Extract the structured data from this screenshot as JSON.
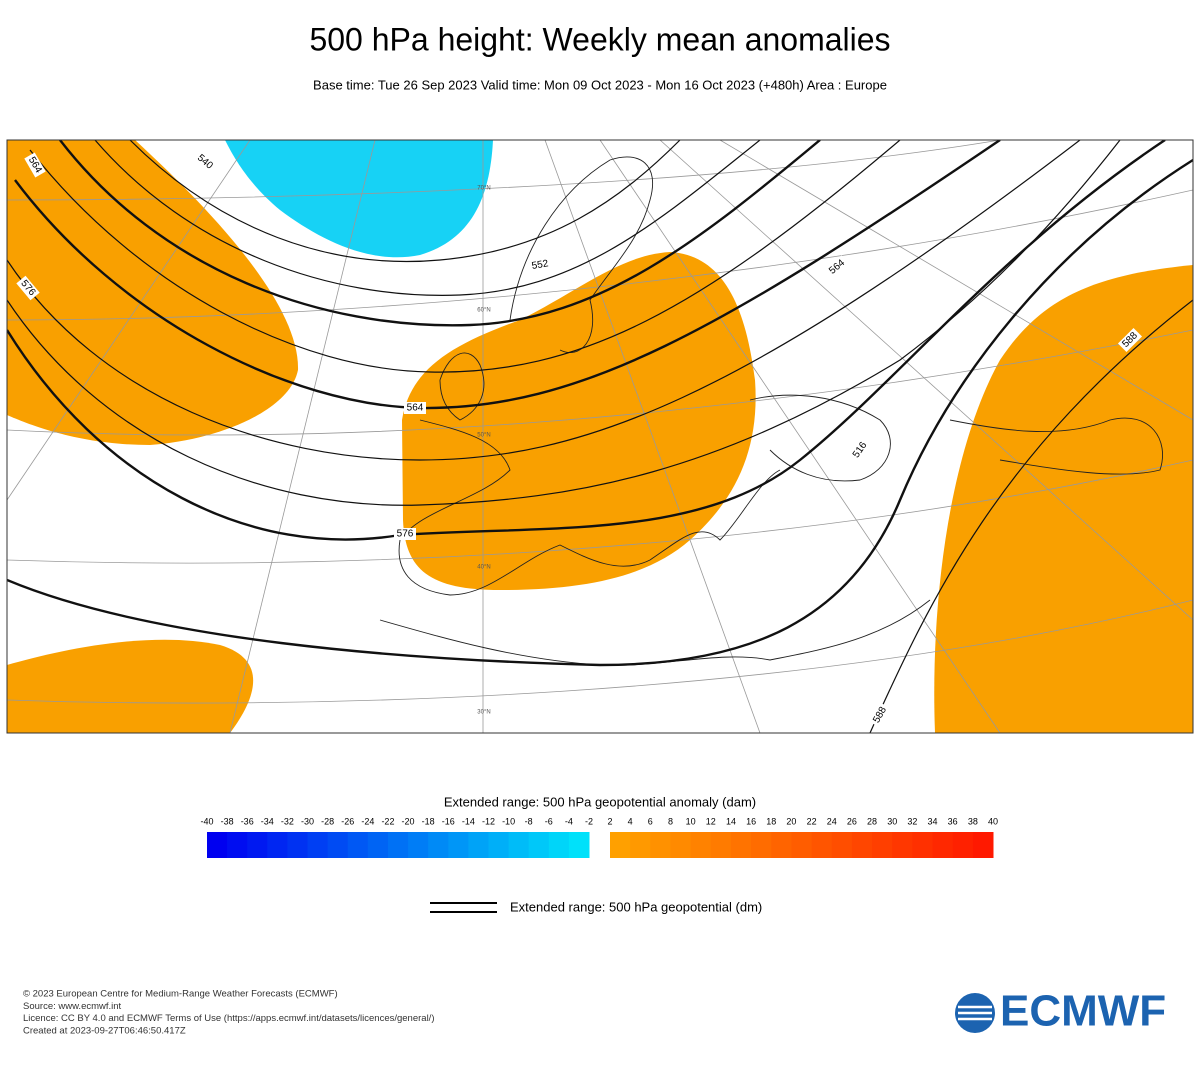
{
  "header": {
    "title": "500 hPa height: Weekly mean anomalies",
    "subtitle": "Base time: Tue 26 Sep 2023 Valid time: Mon 09 Oct 2023 - Mon 16 Oct 2023 (+480h) Area : Europe"
  },
  "map": {
    "contour_labels": [
      "564",
      "540",
      "576",
      "552",
      "564",
      "576",
      "564",
      "516",
      "588",
      "588"
    ],
    "latitude_labels": [
      "70°N",
      "60°N",
      "50°N",
      "40°N",
      "30°N"
    ]
  },
  "colorbar": {
    "title": "Extended range: 500 hPa geopotential anomaly (dam)",
    "negative_ticks": [
      -40,
      -38,
      -36,
      -34,
      -32,
      -30,
      -28,
      -26,
      -24,
      -22,
      -20,
      -18,
      -16,
      -14,
      -12,
      -10,
      -8,
      -6,
      -4,
      -2
    ],
    "positive_ticks": [
      2,
      4,
      6,
      8,
      10,
      12,
      14,
      16,
      18,
      20,
      22,
      24,
      26,
      28,
      30,
      32,
      34,
      36,
      38,
      40
    ]
  },
  "legend": {
    "label": "Extended range: 500 hPa geopotential (dm)"
  },
  "footer": {
    "lines": [
      "© 2023 European Centre for Medium-Range Weather Forecasts (ECMWF)",
      "Source: www.ecmwf.int",
      "Licence: CC BY 4.0 and ECMWF Terms of Use (https://apps.ecmwf.int/datasets/licences/general/)",
      "Created at 2023-09-27T06:46:50.417Z"
    ]
  },
  "logo": {
    "text": "ECMWF"
  }
}
